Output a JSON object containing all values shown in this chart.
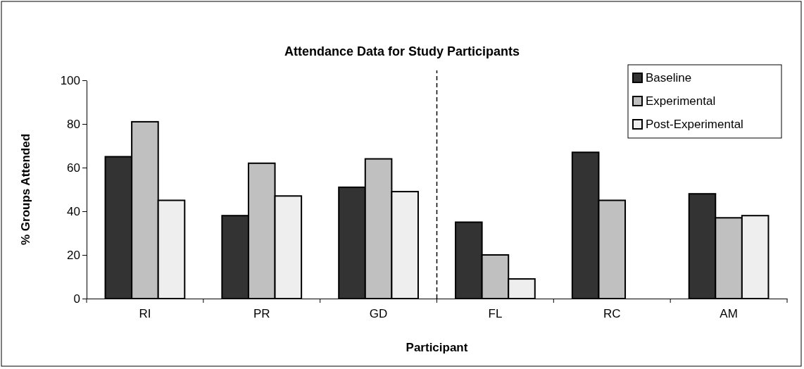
{
  "chart_data": {
    "type": "bar",
    "title": "Attendance Data for Study Participants",
    "xlabel": "Participant",
    "ylabel": "% Groups Attended",
    "categories": [
      "RI",
      "PR",
      "GD",
      "FL",
      "RC",
      "AM"
    ],
    "series": [
      {
        "name": "Baseline",
        "color": "#333333",
        "values": [
          65,
          38,
          51,
          35,
          67,
          48
        ]
      },
      {
        "name": "Experimental",
        "color": "#c0c0c0",
        "values": [
          81,
          62,
          64,
          20,
          45,
          37
        ]
      },
      {
        "name": "Post-Experimental",
        "color": "#eeeeee",
        "values": [
          45,
          47,
          49,
          9,
          null,
          38
        ]
      }
    ],
    "ylim": [
      0,
      100
    ],
    "yticks": [
      0,
      20,
      40,
      60,
      80,
      100
    ],
    "grid": false,
    "legend": "top right"
  }
}
